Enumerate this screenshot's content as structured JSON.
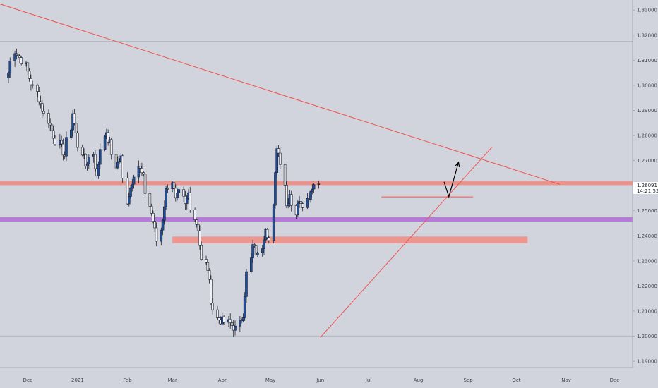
{
  "chart_data": {
    "type": "candlestick",
    "x_ticks": [
      "Dec",
      "2021",
      "Feb",
      "Mar",
      "Apr",
      "May",
      "Jun",
      "Jul",
      "Aug",
      "Sep",
      "Oct",
      "Nov",
      "Dec"
    ],
    "y_ticks": [
      "1.33000",
      "1.32000",
      "1.31000",
      "1.30000",
      "1.29000",
      "1.28000",
      "1.27000",
      "1.26000",
      "1.25000",
      "1.24000",
      "1.23000",
      "1.22000",
      "1.21000",
      "1.20000",
      "1.19000"
    ],
    "ylim": [
      1.1875,
      1.334
    ],
    "current_price": "1.26091",
    "countdown": "14:21:52",
    "close_path": [
      [
        0,
        1.305
      ],
      [
        2,
        1.314
      ],
      [
        6,
        1.31
      ],
      [
        9,
        1.303
      ],
      [
        13,
        1.295
      ],
      [
        17,
        1.286
      ],
      [
        21,
        1.278
      ],
      [
        25,
        1.272
      ],
      [
        28,
        1.289
      ],
      [
        31,
        1.276
      ],
      [
        34,
        1.268
      ],
      [
        37,
        1.273
      ],
      [
        39,
        1.263
      ],
      [
        42,
        1.281
      ],
      [
        45,
        1.277
      ],
      [
        47,
        1.268
      ],
      [
        50,
        1.271
      ],
      [
        52,
        1.254
      ],
      [
        55,
        1.262
      ],
      [
        57,
        1.268
      ],
      [
        60,
        1.263
      ],
      [
        62,
        1.252
      ],
      [
        64,
        1.246
      ],
      [
        66,
        1.238
      ],
      [
        68,
        1.247
      ],
      [
        70,
        1.258
      ],
      [
        72,
        1.262
      ],
      [
        74,
        1.254
      ],
      [
        76,
        1.257
      ],
      [
        78,
        1.252
      ],
      [
        80,
        1.257
      ],
      [
        82,
        1.247
      ],
      [
        84,
        1.243
      ],
      [
        86,
        1.23
      ],
      [
        88,
        1.227
      ],
      [
        90,
        1.215
      ],
      [
        92,
        1.207
      ],
      [
        95,
        1.206
      ],
      [
        98,
        1.205
      ],
      [
        101,
        1.203
      ],
      [
        104,
        1.209
      ],
      [
        106,
        1.225
      ],
      [
        108,
        1.236
      ],
      [
        111,
        1.232
      ],
      [
        114,
        1.244
      ],
      [
        116,
        1.238
      ],
      [
        118,
        1.264
      ],
      [
        119,
        1.276
      ],
      [
        121,
        1.27
      ],
      [
        123,
        1.252
      ],
      [
        125,
        1.257
      ],
      [
        127,
        1.249
      ],
      [
        129,
        1.255
      ],
      [
        131,
        1.253
      ],
      [
        133,
        1.256
      ],
      [
        135,
        1.26
      ],
      [
        137,
        1.261
      ]
    ],
    "candles_start": "2020-11-19",
    "candle_count": 138,
    "x_axis_range": [
      "2020-11-19",
      "2021-12-07"
    ],
    "annotations": {
      "descending_trendline": {
        "from": [
          "2020-11-06",
          1.334
        ],
        "to": [
          "2021-10-28",
          1.2605
        ]
      },
      "ascending_trendline": {
        "from": [
          "2021-06-01",
          1.1995
        ],
        "to": [
          "2021-09-16",
          1.2755
        ]
      },
      "horizontal_resistance": {
        "price": 1.261,
        "band": [
          1.2602,
          1.2618
        ],
        "color": "#f28b82"
      },
      "purple_support_zone": {
        "price_range": [
          1.2457,
          1.2474
        ],
        "color": "#b276d6"
      },
      "salmon_support_zone": {
        "from": "2021-03-01",
        "to": "2021-10-08",
        "price_range": [
          1.237,
          1.2397
        ],
        "color": "#f28b82"
      },
      "short_horizontal_line": {
        "from": "2021-07-09",
        "to": "2021-09-04",
        "price": 1.2555
      },
      "projection_arrow": [
        [
          "2021-08-17",
          1.2615
        ],
        [
          "2021-08-20",
          1.2556
        ],
        [
          "2021-08-26",
          1.2693
        ]
      ],
      "gray_reference_lines": [
        1.3175,
        1.2001
      ]
    }
  },
  "colors": {
    "background": "#d1d4dc",
    "candle_up": "#1f4e9c",
    "candle_down": "#f0f0f5",
    "candle_outline": "#1e222d",
    "trendline": "#ef5350",
    "price_label_bg": "#ffffff",
    "axis_text": "#434651"
  }
}
